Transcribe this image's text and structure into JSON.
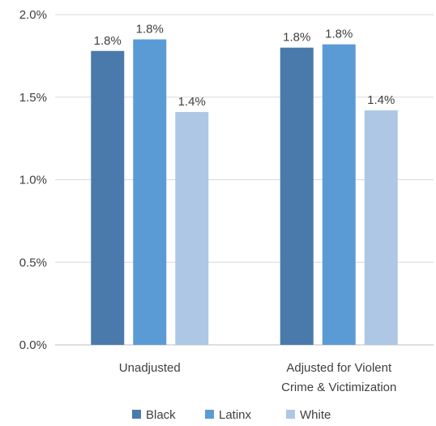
{
  "chart_data": {
    "type": "bar",
    "title": "",
    "xlabel": "",
    "ylabel": "",
    "categories": [
      [
        "Unadjusted"
      ],
      [
        "Adjusted for Violent",
        "Crime & Victimization"
      ]
    ],
    "series": [
      {
        "name": "Black",
        "color": "#4a7aab",
        "values": [
          1.78,
          1.8
        ],
        "labels": [
          "1.8%",
          "1.8%"
        ]
      },
      {
        "name": "Latinx",
        "color": "#5b9bd5",
        "values": [
          1.85,
          1.82
        ],
        "labels": [
          "1.8%",
          "1.8%"
        ]
      },
      {
        "name": "White",
        "color": "#aec7e5",
        "values": [
          1.41,
          1.42
        ],
        "labels": [
          "1.4%",
          "1.4%"
        ]
      }
    ],
    "ylim": [
      0,
      2.0
    ],
    "yticks": [
      {
        "value": 0.0,
        "label": "0.0%"
      },
      {
        "value": 0.5,
        "label": "0.5%"
      },
      {
        "value": 1.0,
        "label": "1.0%"
      },
      {
        "value": 1.5,
        "label": "1.5%"
      },
      {
        "value": 2.0,
        "label": "2.0%"
      }
    ],
    "grid": true,
    "legend": "bottom"
  }
}
